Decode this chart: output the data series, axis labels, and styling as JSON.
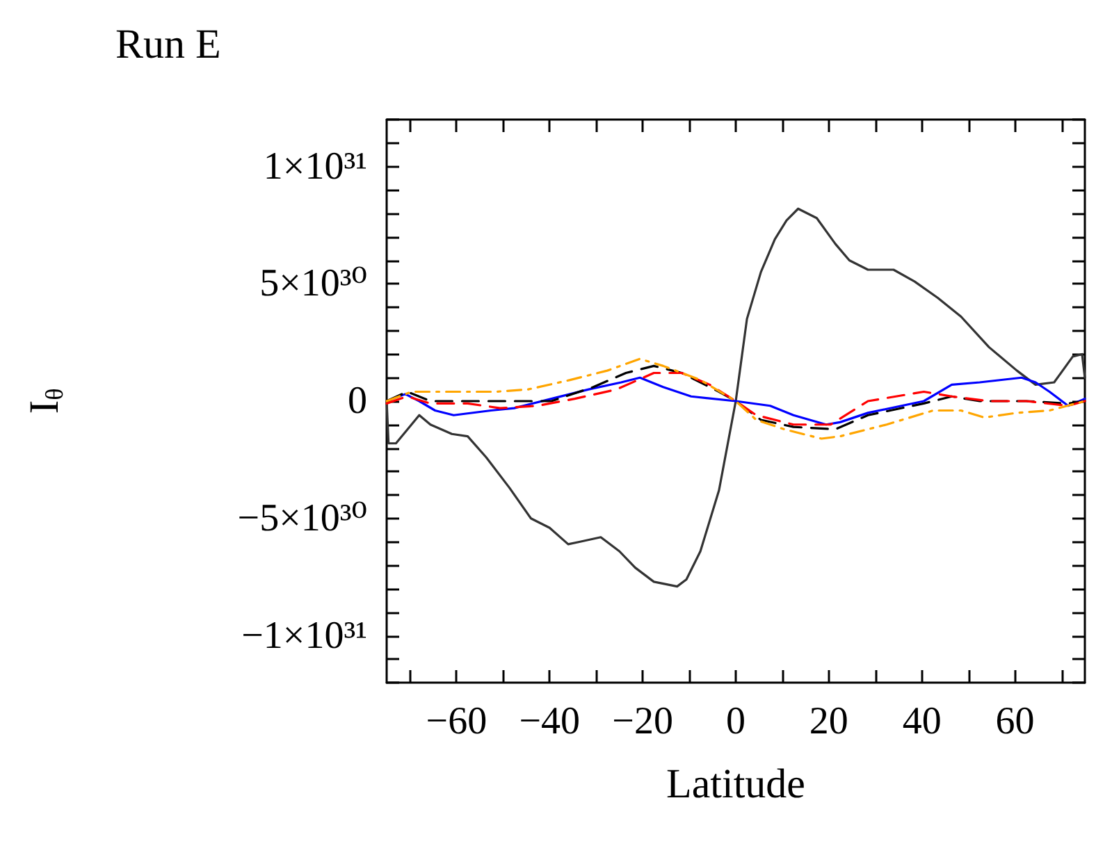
{
  "chart_data": {
    "type": "line",
    "title": "Run E",
    "xlabel": "Latitude",
    "ylabel": "I$_{θ}$",
    "xlim": [
      -75,
      75
    ],
    "ylim": [
      -1.2e+31,
      1.2e+31
    ],
    "xticks": [
      {
        "value": -70,
        "label": null
      },
      {
        "value": -60,
        "label": "−60"
      },
      {
        "value": -50,
        "label": null
      },
      {
        "value": -40,
        "label": "−40"
      },
      {
        "value": -30,
        "label": null
      },
      {
        "value": -20,
        "label": "−20"
      },
      {
        "value": -10,
        "label": null
      },
      0,
      {
        "value": 10,
        "label": null
      },
      20,
      {
        "value": 30,
        "label": null
      },
      40,
      {
        "value": 50,
        "label": null
      },
      60,
      {
        "value": 70,
        "label": null
      }
    ],
    "yticks": [
      {
        "value": -1.2e+31,
        "label": null
      },
      {
        "value": -1.1e+31,
        "label": null
      },
      {
        "value": -1e+31,
        "label": "−1×10³¹"
      },
      {
        "value": -9e+30,
        "label": null
      },
      {
        "value": -8e+30,
        "label": null
      },
      {
        "value": -7e+30,
        "label": null
      },
      {
        "value": -6e+30,
        "label": null
      },
      {
        "value": -5e+30,
        "label": "−5×10³⁰"
      },
      {
        "value": -4e+30,
        "label": null
      },
      {
        "value": -3e+30,
        "label": null
      },
      {
        "value": -2e+30,
        "label": null
      },
      {
        "value": -1e+30,
        "label": null
      },
      0,
      {
        "value": 1e+30,
        "label": null
      },
      {
        "value": 2e+30,
        "label": null
      },
      {
        "value": 3e+30,
        "label": null
      },
      {
        "value": 4e+30,
        "label": null
      },
      {
        "value": 5e+30,
        "label": "5×10³⁰"
      },
      {
        "value": 6e+30,
        "label": null
      },
      {
        "value": 7e+30,
        "label": null
      },
      {
        "value": 8e+30,
        "label": null
      },
      {
        "value": 9e+30,
        "label": null
      },
      {
        "value": 1e+31,
        "label": "1×10³¹"
      },
      {
        "value": 1.1e+31,
        "label": null
      },
      {
        "value": 1.2e+31,
        "label": null
      }
    ],
    "marker": "none",
    "series": [
      {
        "color": "#333333",
        "line_style": "solid",
        "x": [
          -75,
          -74.6,
          -73,
          -68,
          -65.6,
          -61,
          -57.6,
          -53.6,
          -48.6,
          -44,
          -40,
          -36,
          -33.6,
          -29,
          -25,
          -21.6,
          -17.6,
          -12.6,
          -10.6,
          -7.6,
          -3.6,
          0,
          2.4,
          5.4,
          8.4,
          10.9,
          13.4,
          17.4,
          21.4,
          24.4,
          28.4,
          33.9,
          38.4,
          43.4,
          48.4,
          54.4,
          60.4,
          64.4,
          68.4,
          72.4,
          74.4,
          75
        ],
        "values": [
          0,
          -1.8e+30,
          -1.8e+30,
          -6e+29,
          -1e+30,
          -1.4e+30,
          -1.5e+30,
          -2.4e+30,
          -3.7e+30,
          -5e+30,
          -5.4e+30,
          -6.1e+30,
          -6e+30,
          -5.8e+30,
          -6.4e+30,
          -7.1e+30,
          -7.7e+30,
          -7.9e+30,
          -7.6e+30,
          -6.4e+30,
          -3.8e+30,
          0,
          3.5e+30,
          5.5e+30,
          6.9e+30,
          7.7e+30,
          8.2e+30,
          7.8e+30,
          6.7e+30,
          6e+30,
          5.6e+30,
          5.6e+30,
          5.1e+30,
          4.4e+30,
          3.6e+30,
          2.3e+30,
          1.3e+30,
          7e+29,
          8e+29,
          1.9e+30,
          2e+30,
          1e+30
        ]
      },
      {
        "color": "#0000ff",
        "line_style": "solid",
        "x": [
          -75,
          -71,
          -68,
          -64.6,
          -60.6,
          -52.6,
          -47.6,
          -39.6,
          -31.6,
          -24.6,
          -20.6,
          -15.6,
          -9.6,
          0,
          7.4,
          12.4,
          19.4,
          22.4,
          28.4,
          40.4,
          46.4,
          52.4,
          61.4,
          64.4,
          67.4,
          71.4,
          75
        ],
        "values": [
          0,
          3e+29,
          0,
          -4e+29,
          -6e+29,
          -4e+29,
          -3e+29,
          1e+29,
          5e+29,
          8e+29,
          1e+30,
          6e+29,
          2e+29,
          0,
          -2e+29,
          -6e+29,
          -1e+30,
          -9e+29,
          -5e+29,
          0,
          7e+29,
          8e+29,
          1e+30,
          8e+29,
          4e+29,
          -2e+29,
          1e+29
        ]
      },
      {
        "color": "#000000",
        "line_style": "dashed",
        "x": [
          -75,
          -70.6,
          -65.6,
          -60.6,
          -47.6,
          -39.6,
          -30.6,
          -23.6,
          -17.6,
          -11.6,
          -3.6,
          0,
          5.4,
          12.4,
          21.4,
          28.4,
          40.4,
          46.4,
          52.4,
          62.4,
          71.4,
          75
        ],
        "values": [
          0,
          4e+29,
          0,
          0,
          0,
          0,
          6e+29,
          1.2e+30,
          1.5e+30,
          1.2e+30,
          4e+29,
          0,
          -8e+29,
          -1.1e+30,
          -1.2e+30,
          -6e+29,
          -1e+29,
          2e+29,
          0,
          0,
          -1e+29,
          0
        ]
      },
      {
        "color": "#ff0000",
        "line_style": "dashed",
        "x": [
          -75,
          -70.6,
          -65.6,
          -57.6,
          -50.6,
          -42.6,
          -34.6,
          -25.6,
          -17.6,
          -11.6,
          -5.6,
          0,
          4.4,
          12.4,
          20.4,
          28.4,
          40.4,
          46.4,
          54.4,
          62.4,
          71.4,
          75
        ],
        "values": [
          -1e+29,
          2e+29,
          -1e+29,
          -1e+29,
          -3e+29,
          -2e+29,
          1e+29,
          5e+29,
          1.2e+30,
          1.2e+30,
          7e+29,
          0,
          -6e+29,
          -1e+30,
          -1e+30,
          0,
          4e+29,
          2e+29,
          0,
          0,
          -2e+29,
          0
        ]
      },
      {
        "color": "#ffa500",
        "line_style": "dashdot",
        "x": [
          -75,
          -69.6,
          -59.6,
          -51.6,
          -44.6,
          -35.6,
          -27.6,
          -20.6,
          -15.6,
          -7.6,
          0,
          4.4,
          10.4,
          18.4,
          22.4,
          32.4,
          42.4,
          48.4,
          53.4,
          60.4,
          67.4,
          75
        ],
        "values": [
          0,
          4e+29,
          4e+29,
          4e+29,
          5e+29,
          9e+29,
          1.3e+30,
          1.8e+30,
          1.5e+30,
          9e+29,
          0,
          -8e+29,
          -1.2e+30,
          -1.6e+30,
          -1.5e+30,
          -1e+30,
          -4e+29,
          -4e+29,
          -7e+29,
          -5e+29,
          -4e+29,
          0
        ]
      }
    ]
  }
}
